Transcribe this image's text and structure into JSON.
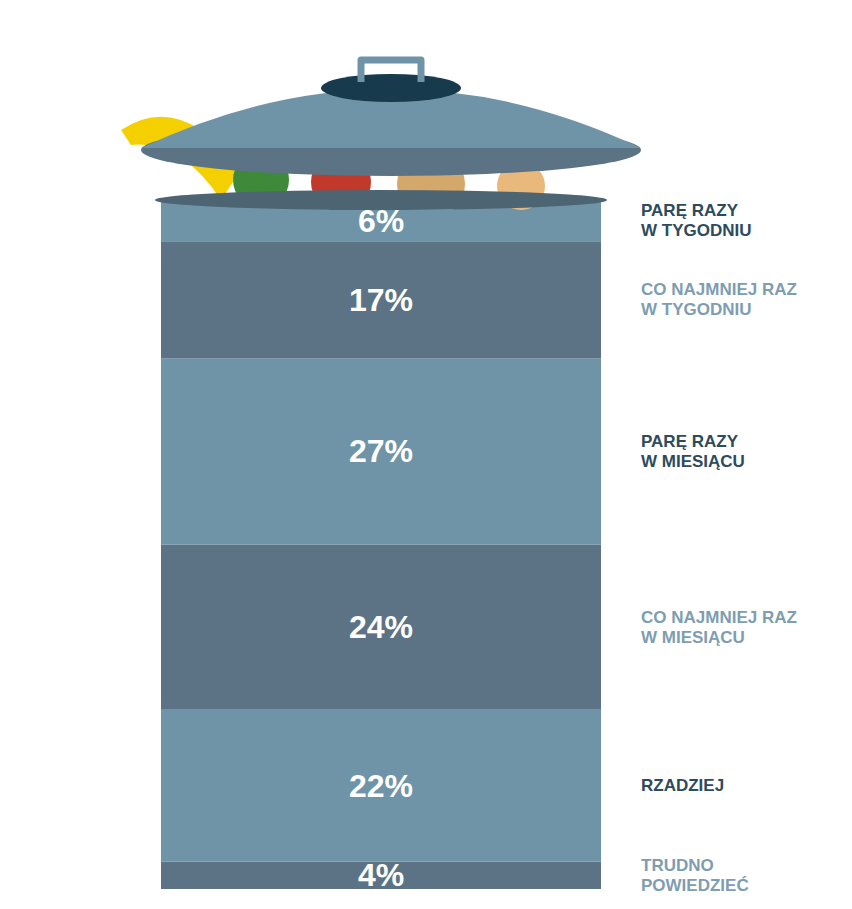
{
  "chart_data": {
    "type": "bar",
    "stacked": true,
    "data_labels": true,
    "tick_labels": false,
    "categories": [
      null
    ],
    "ylim": [
      0,
      100
    ],
    "series": [
      {
        "name": "PARĘ RAZY W TYGODNIU",
        "color": "#6f94a8",
        "values": [
          6
        ],
        "value_labels": [
          "6%"
        ]
      },
      {
        "name": "CO NAJMNIEJ RAZ W TYGODNIU",
        "color": "#5b7384",
        "values": [
          17
        ],
        "value_labels": [
          "17%"
        ]
      },
      {
        "name": "PARĘ RAZY W MIESIĄCU",
        "color": "#6f94a8",
        "values": [
          27
        ],
        "value_labels": [
          "27%"
        ]
      },
      {
        "name": "CO NAJMNIEJ RAZ W MIESIĄCU",
        "color": "#5b7384",
        "values": [
          24
        ],
        "value_labels": [
          "24%"
        ]
      },
      {
        "name": "RZADZIEJ",
        "color": "#6f94a8",
        "values": [
          22
        ],
        "value_labels": [
          "22%"
        ]
      },
      {
        "name": "TRUDNO POWIEDZIEĆ",
        "color": "#5b7384",
        "values": [
          4
        ],
        "value_labels": [
          "4%"
        ]
      }
    ]
  }
}
